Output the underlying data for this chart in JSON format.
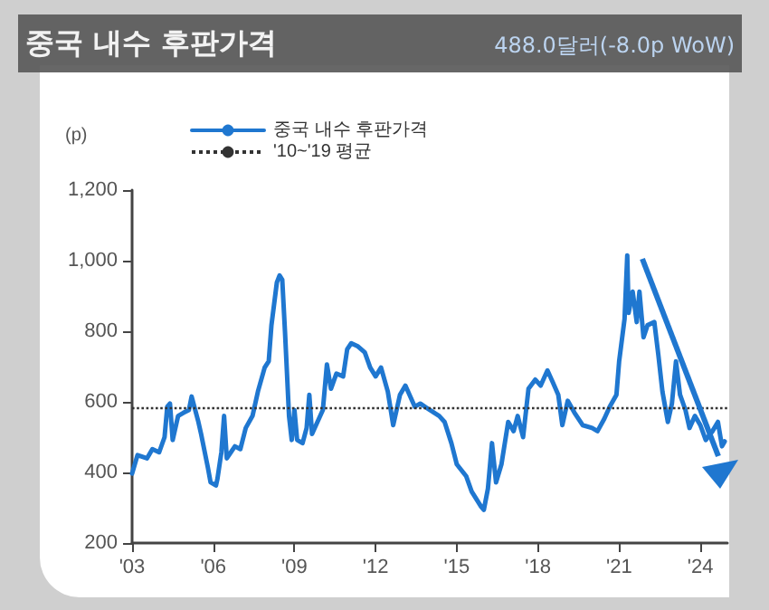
{
  "chart_data": {
    "type": "line",
    "title": "중국 내수 후판가격",
    "subtitle": "488.0달러(-8.0p WoW)",
    "ylabel": "(p)",
    "series": [
      {
        "name": "중국 내수 후판가격",
        "color": "#1f77d0",
        "x": [
          2003.0,
          2003.2,
          2003.55,
          2003.75,
          2004.0,
          2004.2,
          2004.3,
          2004.4,
          2004.5,
          2004.7,
          2004.9,
          2005.1,
          2005.2,
          2005.45,
          2005.55,
          2005.8,
          2005.9,
          2006.1,
          2006.15,
          2006.3,
          2006.4,
          2006.5,
          2006.8,
          2007.0,
          2007.2,
          2007.45,
          2007.65,
          2007.9,
          2008.05,
          2008.15,
          2008.35,
          2008.45,
          2008.55,
          2008.65,
          2008.8,
          2008.9,
          2009.0,
          2009.1,
          2009.3,
          2009.45,
          2009.55,
          2009.65,
          2009.85,
          2010.05,
          2010.2,
          2010.35,
          2010.55,
          2010.8,
          2010.95,
          2011.1,
          2011.35,
          2011.6,
          2011.8,
          2012.0,
          2012.2,
          2012.45,
          2012.65,
          2012.9,
          2013.1,
          2013.45,
          2013.65,
          2014.0,
          2014.35,
          2014.55,
          2014.8,
          2015.0,
          2015.35,
          2015.55,
          2015.9,
          2016.0,
          2016.15,
          2016.3,
          2016.45,
          2016.65,
          2016.9,
          2017.1,
          2017.25,
          2017.45,
          2017.65,
          2017.9,
          2018.1,
          2018.35,
          2018.55,
          2018.75,
          2018.9,
          2019.1,
          2019.35,
          2019.65,
          2020.0,
          2020.2,
          2020.45,
          2020.65,
          2020.9,
          2021.0,
          2021.2,
          2021.3,
          2021.35,
          2021.5,
          2021.65,
          2021.75,
          2021.9,
          2022.05,
          2022.3,
          2022.45,
          2022.6,
          2022.8,
          2022.95,
          2023.1,
          2023.25,
          2023.45,
          2023.6,
          2023.8,
          2024.0,
          2024.2,
          2024.45,
          2024.65,
          2024.8,
          2024.9
        ],
        "values": [
          397,
          449,
          440,
          466,
          457,
          500,
          586,
          595,
          492,
          560,
          569,
          577,
          615,
          543,
          509,
          414,
          372,
          363,
          380,
          457,
          560,
          440,
          474,
          466,
          526,
          560,
          629,
          697,
          715,
          817,
          938,
          958,
          946,
          800,
          560,
          492,
          577,
          492,
          483,
          526,
          620,
          509,
          543,
          577,
          706,
          637,
          680,
          672,
          749,
          766,
          757,
          740,
          697,
          672,
          697,
          629,
          534,
          620,
          646,
          586,
          595,
          577,
          560,
          543,
          483,
          423,
          389,
          346,
          303,
          294,
          354,
          483,
          372,
          423,
          543,
          517,
          560,
          500,
          637,
          663,
          646,
          689,
          655,
          620,
          534,
          603,
          569,
          534,
          526,
          517,
          552,
          586,
          620,
          715,
          835,
          1015,
          852,
          912,
          826,
          912,
          783,
          817,
          826,
          732,
          629,
          543,
          595,
          715,
          620,
          577,
          526,
          560,
          534,
          492,
          517,
          543,
          474,
          488
        ]
      }
    ],
    "ref_lines": [
      {
        "axis": "y",
        "value": 585,
        "label": "'10~'19 평균",
        "color": "#333333",
        "line_style": "dotted"
      }
    ],
    "xlim": [
      2003,
      2025
    ],
    "xticks": [
      {
        "value": 2003,
        "label": "'03"
      },
      {
        "value": 2006,
        "label": "'06"
      },
      {
        "value": 2009,
        "label": "'09"
      },
      {
        "value": 2012,
        "label": "'12"
      },
      {
        "value": 2015,
        "label": "'15"
      },
      {
        "value": 2018,
        "label": "'18"
      },
      {
        "value": 2021,
        "label": "'21"
      },
      {
        "value": 2024,
        "label": "'24"
      }
    ],
    "ylim": [
      200,
      1200
    ],
    "yticks": [
      {
        "value": 200,
        "label": "200"
      },
      {
        "value": 400,
        "label": "400"
      },
      {
        "value": 600,
        "label": "600"
      },
      {
        "value": 800,
        "label": "800"
      },
      {
        "value": 1000,
        "label": "1,000"
      },
      {
        "value": 1200,
        "label": "1,200"
      }
    ],
    "grid": false,
    "legend": "top left",
    "marker": "none",
    "line_style": "solid"
  }
}
